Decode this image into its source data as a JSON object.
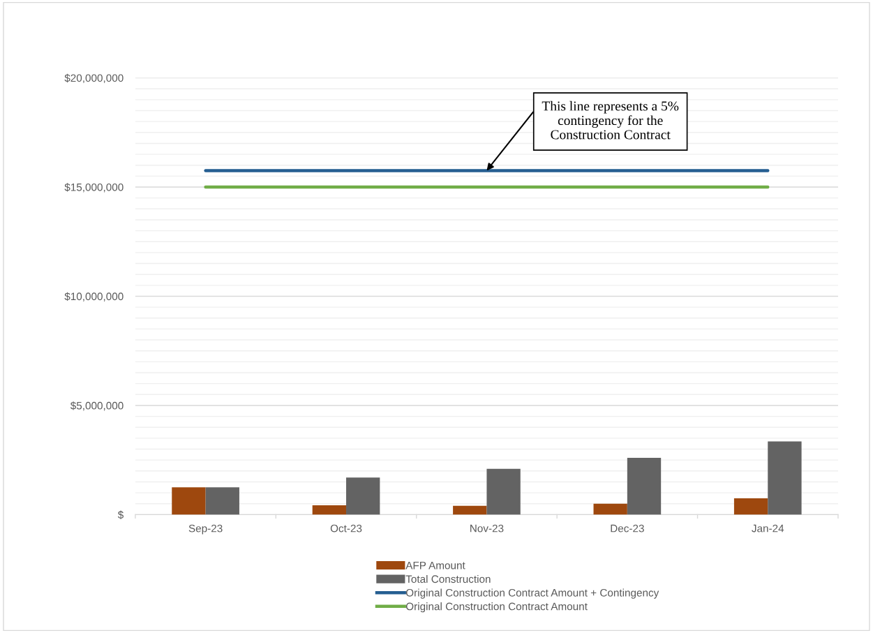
{
  "chart_data": {
    "type": "bar",
    "categories": [
      "Sep-23",
      "Oct-23",
      "Nov-23",
      "Dec-23",
      "Jan-24"
    ],
    "series": [
      {
        "name": "AFP Amount",
        "color": "#9e480e",
        "values": [
          1250000,
          430000,
          400000,
          500000,
          750000
        ]
      },
      {
        "name": "Total Construction",
        "color": "#636363",
        "values": [
          1250000,
          1700000,
          2100000,
          2600000,
          3350000
        ]
      },
      {
        "name": "Original Construction Contract Amount + Contingency",
        "type": "line",
        "color": "#255e91",
        "values": [
          15750000,
          15750000,
          15750000,
          15750000,
          15750000
        ]
      },
      {
        "name": "Original Construction Contract Amount",
        "type": "line",
        "color": "#70ad47",
        "values": [
          15000000,
          15000000,
          15000000,
          15000000,
          15000000
        ]
      }
    ],
    "ylim": [
      0,
      20000000
    ],
    "yticks": [
      {
        "value": 0,
        "label": "$"
      },
      {
        "value": 500000,
        "label": null
      },
      {
        "value": 1000000,
        "label": null
      },
      {
        "value": 1500000,
        "label": null
      },
      {
        "value": 2000000,
        "label": null
      },
      {
        "value": 2500000,
        "label": null
      },
      {
        "value": 3000000,
        "label": null
      },
      {
        "value": 3500000,
        "label": null
      },
      {
        "value": 4000000,
        "label": null
      },
      {
        "value": 4500000,
        "label": null
      },
      {
        "value": 5000000,
        "label": "$5,000,000"
      },
      {
        "value": 5500000,
        "label": null
      },
      {
        "value": 6000000,
        "label": null
      },
      {
        "value": 6500000,
        "label": null
      },
      {
        "value": 7000000,
        "label": null
      },
      {
        "value": 7500000,
        "label": null
      },
      {
        "value": 8000000,
        "label": null
      },
      {
        "value": 8500000,
        "label": null
      },
      {
        "value": 9000000,
        "label": null
      },
      {
        "value": 9500000,
        "label": null
      },
      {
        "value": 10000000,
        "label": "$10,000,000"
      },
      {
        "value": 10500000,
        "label": null
      },
      {
        "value": 11000000,
        "label": null
      },
      {
        "value": 11500000,
        "label": null
      },
      {
        "value": 12000000,
        "label": null
      },
      {
        "value": 12500000,
        "label": null
      },
      {
        "value": 13000000,
        "label": null
      },
      {
        "value": 13500000,
        "label": null
      },
      {
        "value": 14000000,
        "label": null
      },
      {
        "value": 14500000,
        "label": null
      },
      {
        "value": 15000000,
        "label": "$15,000,000"
      },
      {
        "value": 15500000,
        "label": null
      },
      {
        "value": 16000000,
        "label": null
      },
      {
        "value": 16500000,
        "label": null
      },
      {
        "value": 17000000,
        "label": null
      },
      {
        "value": 17500000,
        "label": null
      },
      {
        "value": 18000000,
        "label": null
      },
      {
        "value": 18500000,
        "label": null
      },
      {
        "value": 19000000,
        "label": null
      },
      {
        "value": 19500000,
        "label": null
      },
      {
        "value": 20000000,
        "label": "$20,000,000"
      }
    ],
    "grid": "y",
    "legend": "bottom",
    "annotations": [
      {
        "text": "This line represents a 5%\ncontingency for the\nConstruction Contract",
        "x": "Nov-23",
        "y": 15750000
      }
    ]
  }
}
